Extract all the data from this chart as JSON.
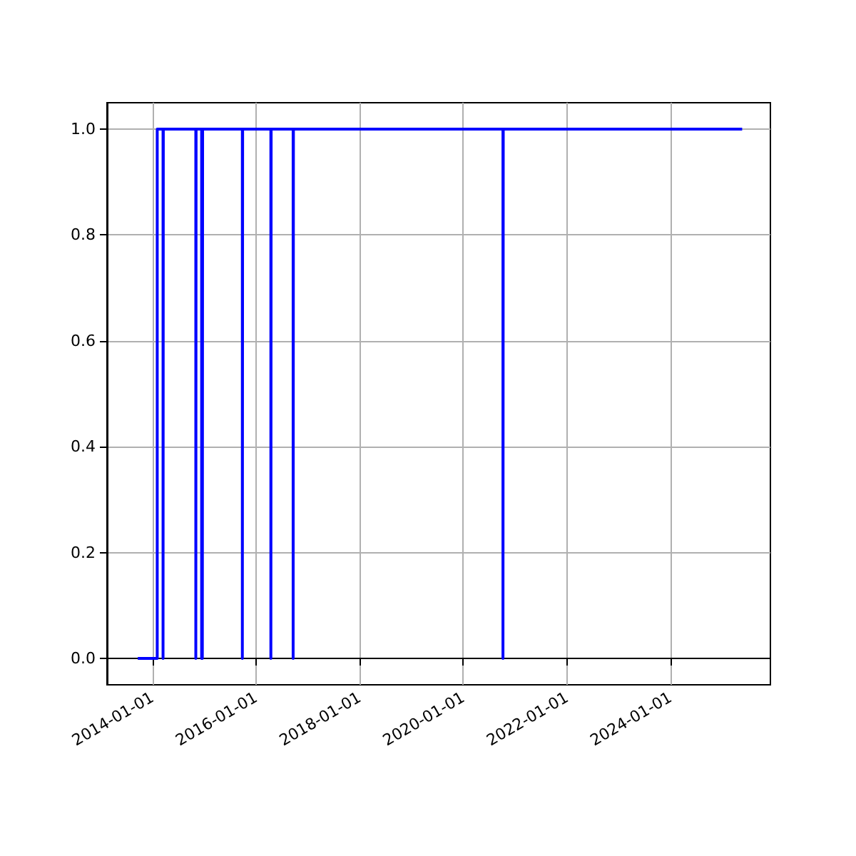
{
  "chart_data": {
    "type": "step",
    "x": [
      "2013-09-20",
      "2014-02-04",
      "2014-03-17",
      "2014-03-19",
      "2014-11-03",
      "2014-11-05",
      "2014-12-14",
      "2014-12-16",
      "2014-12-19",
      "2014-12-21",
      "2015-09-27",
      "2015-09-29",
      "2016-04-15",
      "2016-04-17",
      "2016-09-19",
      "2016-09-21",
      "2020-10-07",
      "2020-10-09",
      "2025-05-20"
    ],
    "values": [
      0,
      1,
      0,
      1,
      0,
      1,
      0,
      1,
      0,
      1,
      0,
      1,
      0,
      1,
      0,
      1,
      0,
      1,
      1
    ],
    "color": "#0000ff",
    "xlim": [
      "2013-02-15",
      "2025-12-05"
    ],
    "xticks": [
      "2014-01-01",
      "2016-01-01",
      "2018-01-01",
      "2020-01-01",
      "2022-01-01",
      "2024-01-01"
    ],
    "ylim": [
      -0.05,
      1.05
    ],
    "yticks": [
      {
        "value": 0,
        "label": "0.0"
      },
      {
        "value": 0.2,
        "label": "0.2"
      },
      {
        "value": 0.4,
        "label": "0.4"
      },
      {
        "value": 0.6,
        "label": "0.6"
      },
      {
        "value": 0.8,
        "label": "0.8"
      },
      {
        "value": 1,
        "label": "1.0"
      }
    ],
    "grid": true
  }
}
